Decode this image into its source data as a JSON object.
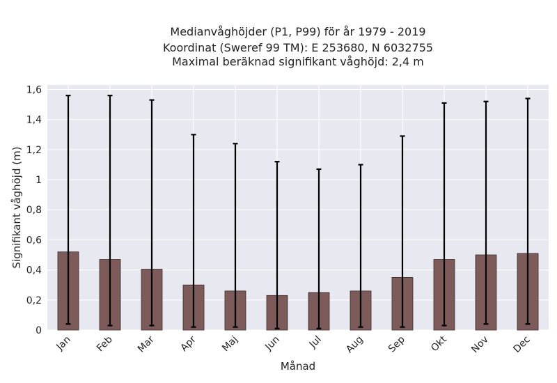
{
  "chart_data": {
    "type": "bar",
    "title_lines": [
      "Medianvåghöjder (P1, P99) för år 1979 - 2019",
      "Koordinat (Sweref 99 TM): E 253680, N 6032755",
      "Maximal beräknad signifikant våghöjd: 2,4 m"
    ],
    "xlabel": "Månad",
    "ylabel": "Signifikant våghöjd (m)",
    "categories": [
      "Jan",
      "Feb",
      "Mar",
      "Apr",
      "Maj",
      "Jun",
      "Jul",
      "Aug",
      "Sep",
      "Okt",
      "Nov",
      "Dec"
    ],
    "values": [
      0.52,
      0.47,
      0.405,
      0.3,
      0.26,
      0.23,
      0.25,
      0.26,
      0.35,
      0.47,
      0.5,
      0.51
    ],
    "p1": [
      0.04,
      0.03,
      0.03,
      0.02,
      0.02,
      0.01,
      0.01,
      0.02,
      0.02,
      0.03,
      0.04,
      0.04
    ],
    "p99": [
      1.56,
      1.56,
      1.53,
      1.3,
      1.24,
      1.12,
      1.07,
      1.1,
      1.29,
      1.51,
      1.52,
      1.54
    ],
    "ylim": [
      0,
      1.63
    ],
    "yticks": [
      {
        "value": 0,
        "label": "0"
      },
      {
        "value": 0.2,
        "label": "0,2"
      },
      {
        "value": 0.4,
        "label": "0,4"
      },
      {
        "value": 0.6,
        "label": "0,6"
      },
      {
        "value": 0.8,
        "label": "0,8"
      },
      {
        "value": 1.0,
        "label": "1"
      },
      {
        "value": 1.2,
        "label": "1,2"
      },
      {
        "value": 1.4,
        "label": "1,4"
      },
      {
        "value": 1.6,
        "label": "1,6"
      }
    ],
    "grid": true,
    "colors": {
      "bar": "#7d5b5b",
      "bar_edge": "#3a2a2a",
      "error_bar": "#000000",
      "plot_background": "#e8e8f0",
      "grid": "#ffffff"
    }
  }
}
